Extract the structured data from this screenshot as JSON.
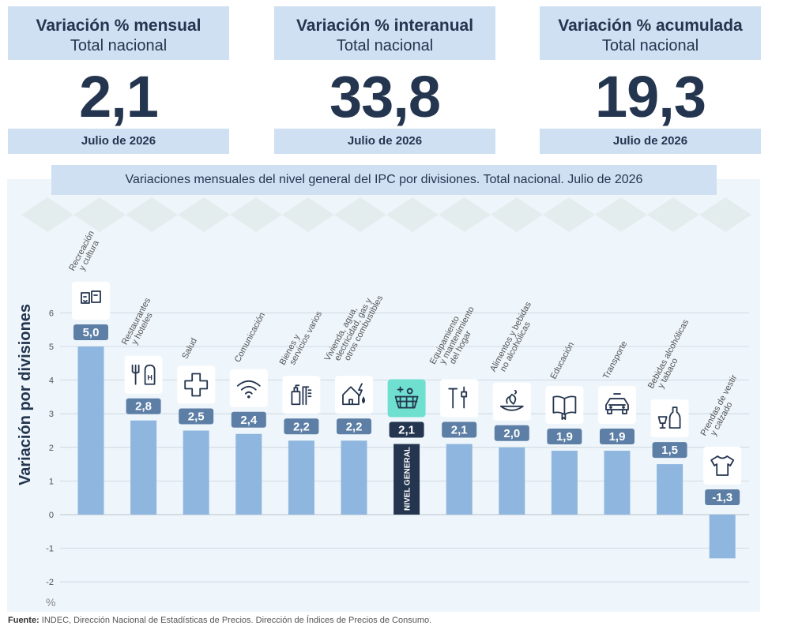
{
  "cards": [
    {
      "title": "Variación % mensual",
      "subtitle": "Total nacional",
      "value": "2,1",
      "period": "Julio de 2026"
    },
    {
      "title": "Variación % interanual",
      "subtitle": "Total nacional",
      "value": "33,8",
      "period": "Julio de 2026"
    },
    {
      "title": "Variación % acumulada",
      "subtitle": "Total nacional",
      "value": "19,3",
      "period": "Julio de 2026"
    }
  ],
  "chart_title": "Variaciones mensuales del nivel general del IPC por divisiones. Total nacional. Julio de 2026",
  "chart_data": {
    "type": "bar",
    "title": "Variaciones mensuales del nivel general del IPC por divisiones. Total nacional. Julio de 2026",
    "ylabel": "Variación por divisiones",
    "yunit": "%",
    "ylim": [
      -2,
      6
    ],
    "yticks": [
      -2,
      -1,
      0,
      1,
      2,
      3,
      4,
      5,
      6
    ],
    "grid": true,
    "categories": [
      [
        "Recreación",
        "y cultura"
      ],
      [
        "Restaurantes",
        "y hoteles"
      ],
      [
        "Salud"
      ],
      [
        "Comunicación"
      ],
      [
        "Bienes y",
        "servicios varios"
      ],
      [
        "Vivienda, agua,",
        "electricidad, gas y",
        "otros combustibles"
      ],
      [
        "NIVEL GENERAL"
      ],
      [
        "Equipamiento",
        "y mantenimiento",
        "del hogar"
      ],
      [
        "Alimentos y bebidas",
        "no alcohólicas"
      ],
      [
        "Educación"
      ],
      [
        "Transporte"
      ],
      [
        "Bebidas alcohólicas",
        "y tabaco"
      ],
      [
        "Prendas de vestir",
        "y calzado"
      ]
    ],
    "values": [
      5.0,
      2.8,
      2.5,
      2.4,
      2.2,
      2.2,
      2.1,
      2.1,
      2.0,
      1.9,
      1.9,
      1.5,
      -1.3
    ],
    "value_labels": [
      "5,0",
      "2,8",
      "2,5",
      "2,4",
      "2,2",
      "2,2",
      "2,1",
      "2,1",
      "2,0",
      "1,9",
      "1,9",
      "1,5",
      "-1,3"
    ],
    "icons": [
      "theater-masks-icon",
      "fork-knife-icon",
      "medical-cross-icon",
      "wifi-icon",
      "toiletries-icon",
      "house-energy-icon",
      "basket-icon",
      "tools-icon",
      "food-icon",
      "book-icon",
      "car-icon",
      "bottle-glass-icon",
      "tshirt-icon"
    ],
    "highlight_index": 6,
    "colors": {
      "bar": "#8fb6de",
      "highlight": "#24354f",
      "label_bg": "#5d7fa6",
      "highlight_icon_bg": "#6fe0cf"
    }
  },
  "footer": {
    "source_label": "Fuente:",
    "source_text": " INDEC, Dirección Nacional de Estadísticas de Precios. Dirección de Índices de Precios de Consumo."
  }
}
